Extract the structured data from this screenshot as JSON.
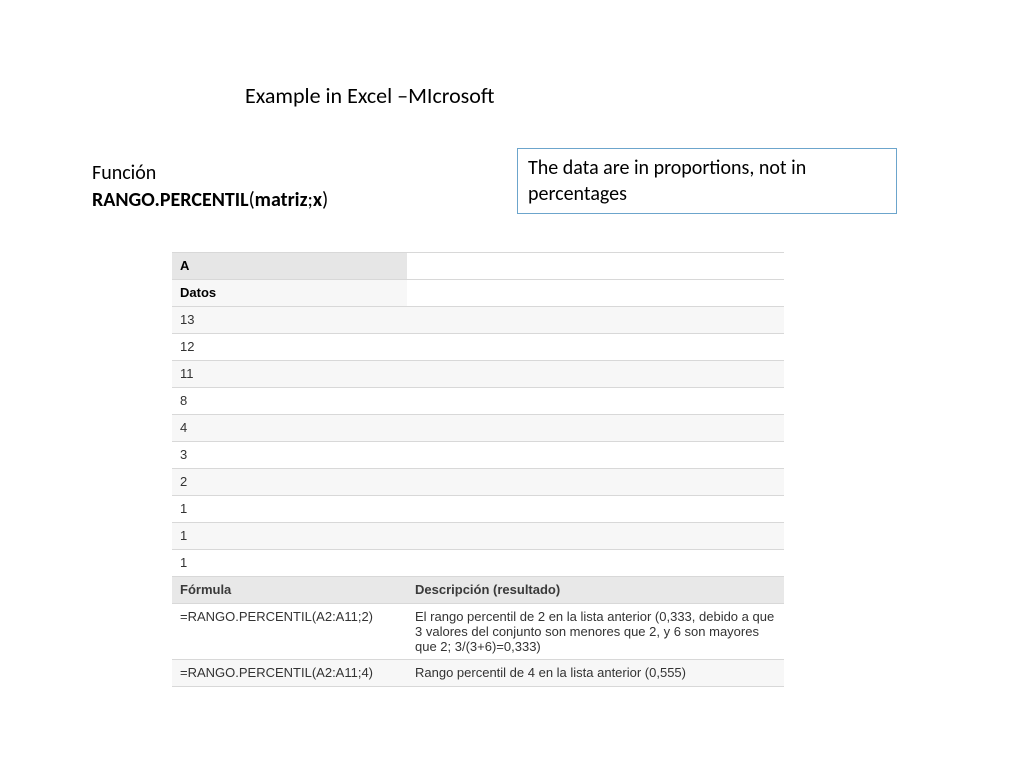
{
  "title": "Example in Excel –MIcrosoft",
  "function_label": "Función",
  "function_name_prefix": "RANGO.PERCENTIL",
  "function_name_paren_open": "(",
  "function_name_args": "matriz",
  "function_name_semi": ";",
  "function_name_arg2": "x",
  "function_name_paren_close": ")",
  "note_text": "The data are in proportions, not in percentages",
  "table": {
    "column_header": "A",
    "datos_label": "Datos",
    "data_rows": [
      "13",
      "12",
      "11",
      "8",
      "4",
      "3",
      "2",
      "1",
      "1",
      "1"
    ],
    "formula_header_left": "Fórmula",
    "formula_header_right": "Descripción (resultado)",
    "formula_rows": [
      {
        "formula": "=RANGO.PERCENTIL(A2:A11;2)",
        "desc": "El rango percentil de 2 en la lista anterior (0,333, debido a que 3 valores del conjunto son menores que 2, y 6 son mayores que 2; 3/(3+6)=0,333)"
      },
      {
        "formula": "=RANGO.PERCENTIL(A2:A11;4)",
        "desc": "Rango percentil de 4 en la lista anterior (0,555)"
      }
    ],
    "colors": {
      "header_bg": "#e6e6e6",
      "subheader_bg": "#f7f7f7",
      "row_odd_bg": "#f7f7f7",
      "row_even_bg": "#ffffff",
      "border": "#d8d8d8",
      "text": "#333333",
      "note_border": "#6ca5cc"
    }
  }
}
